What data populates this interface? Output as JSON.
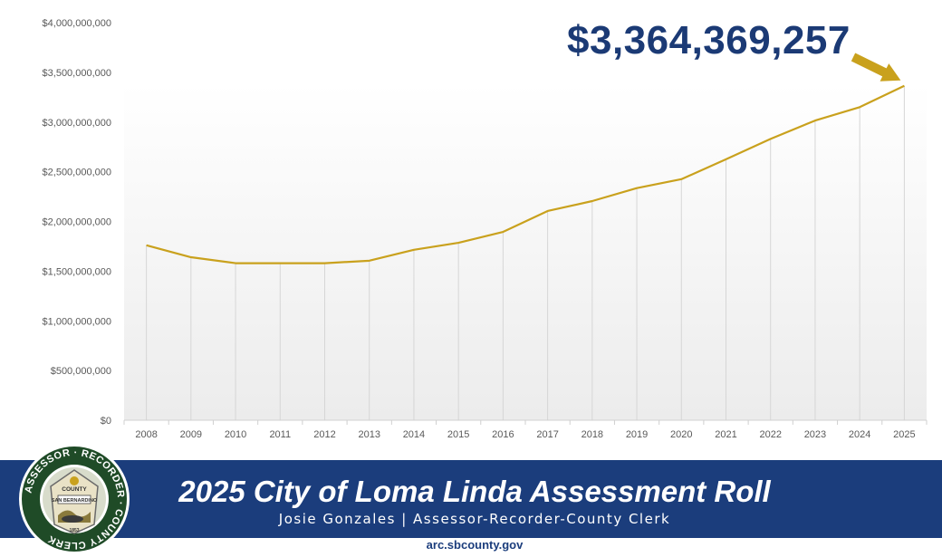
{
  "chart_data": {
    "type": "line",
    "title": "",
    "xlabel": "",
    "ylabel": "",
    "categories": [
      "2008",
      "2009",
      "2010",
      "2011",
      "2012",
      "2013",
      "2014",
      "2015",
      "2016",
      "2017",
      "2018",
      "2019",
      "2020",
      "2021",
      "2022",
      "2023",
      "2024",
      "2025"
    ],
    "series": [
      {
        "values": [
          1760000000,
          1640000000,
          1580000000,
          1580000000,
          1580000000,
          1605000000,
          1715000000,
          1785000000,
          1895000000,
          2105000000,
          2205000000,
          2335000000,
          2425000000,
          2625000000,
          2830000000,
          3015000000,
          3150000000,
          3364369257
        ],
        "color": "#c9a11d"
      }
    ],
    "ylim": [
      0,
      4000000000
    ],
    "yticks": [
      0,
      500000000,
      1000000000,
      1500000000,
      2000000000,
      2500000000,
      3000000000,
      3500000000,
      4000000000
    ],
    "ytick_labels": [
      "$0",
      "$500,000,000",
      "$1,000,000,000",
      "$1,500,000,000",
      "$2,000,000,000",
      "$2,500,000,000",
      "$3,000,000,000",
      "$3,500,000,000",
      "$4,000,000,000"
    ],
    "grid": "vertical",
    "legend": "none",
    "annotation": {
      "text": "$3,364,369,257",
      "target_category": "2025",
      "arrow_color": "#c9a11d",
      "text_color": "#1b3a75"
    }
  },
  "banner": {
    "title": "2025 City of Loma Linda Assessment Roll",
    "subtitle": "Josie Gonzales | Assessor-Recorder-County Clerk",
    "background": "#1b3d7c"
  },
  "seal": {
    "ring_text": "ASSESSOR · RECORDER · COUNTY CLERK",
    "inner_top": "COUNTY",
    "inner_name": "SAN BERNARDINO",
    "year": "1853"
  },
  "footer": {
    "url": "arc.sbcounty.gov"
  }
}
